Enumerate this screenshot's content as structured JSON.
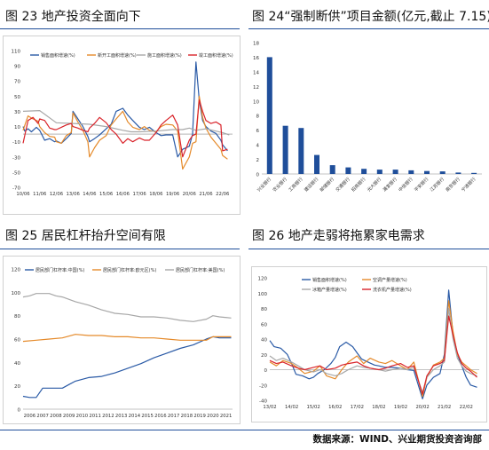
{
  "figures": {
    "fig23": {
      "title": "图 23  地产投资全面向下"
    },
    "fig24": {
      "title": "图 24“强制断供”项目金额(亿元,截止 7.15)"
    },
    "fig25": {
      "title": "图 25 居民杠杆抬升空间有限"
    },
    "fig26": {
      "title": "图 26 地产走弱将拖累家电需求"
    }
  },
  "source": "数据来源：WIND、兴业期货投资咨询部",
  "colors": {
    "blue": "#2a5aa6",
    "orange": "#e58a2a",
    "gray": "#a7a7a7",
    "red": "#d9232a",
    "bar": "#1f4e9a",
    "rule": "#1f4e9a"
  },
  "chart_data": [
    {
      "id": "fig23",
      "type": "line",
      "xticks": [
        "10/06",
        "11/06",
        "12/06",
        "13/06",
        "14/06",
        "15/06",
        "16/06",
        "17/06",
        "18/06",
        "19/06",
        "20/06",
        "21/06",
        "22/06"
      ],
      "yticks": [
        110,
        90,
        70,
        50,
        30,
        10,
        -10,
        -30,
        -50,
        -70
      ],
      "ylim": [
        -70,
        110
      ],
      "xlim": [
        0,
        12.6
      ],
      "series": [
        {
          "name": "销售面积增速(%)",
          "color": "#2a5aa6",
          "x": [
            0,
            0.1,
            0.3,
            0.5,
            0.8,
            1.0,
            1.3,
            1.6,
            1.9,
            2.0,
            2.3,
            2.6,
            2.9,
            3.0,
            3.3,
            3.6,
            3.9,
            4.0,
            4.3,
            4.6,
            5.0,
            5.3,
            5.6,
            6.0,
            6.3,
            6.6,
            7.0,
            7.3,
            7.6,
            8.0,
            8.3,
            8.6,
            9.0,
            9.3,
            9.6,
            10.0,
            10.2,
            10.4,
            10.6,
            10.8,
            11.0,
            11.3,
            11.6,
            11.9,
            12.0,
            12.3
          ],
          "y": [
            10,
            4,
            7,
            3,
            9,
            5,
            -8,
            -6,
            -10,
            -9,
            -12,
            -6,
            1,
            30,
            20,
            10,
            -3,
            -10,
            -6,
            -1,
            7,
            13,
            30,
            34,
            25,
            18,
            9,
            6,
            9,
            2,
            -2,
            -1,
            -1,
            -30,
            -20,
            -16,
            0,
            95,
            45,
            18,
            10,
            4,
            1,
            -8,
            -14,
            -22
          ]
        },
        {
          "name": "新开工面积增速(%)",
          "color": "#e58a2a",
          "x": [
            0,
            0.3,
            0.6,
            0.9,
            1.0,
            1.3,
            1.6,
            1.9,
            2.0,
            2.3,
            2.6,
            2.9,
            3.0,
            3.3,
            3.6,
            3.9,
            4.0,
            4.3,
            4.6,
            5.0,
            5.3,
            5.6,
            6.0,
            6.3,
            6.6,
            7.0,
            7.3,
            7.6,
            8.0,
            8.3,
            8.6,
            9.0,
            9.3,
            9.6,
            10.0,
            10.2,
            10.4,
            10.6,
            10.8,
            11.0,
            11.3,
            11.6,
            11.9,
            12.0,
            12.3
          ],
          "y": [
            5,
            24,
            20,
            17,
            10,
            2,
            -3,
            -4,
            -10,
            -12,
            -2,
            2,
            28,
            16,
            5,
            -10,
            -30,
            -18,
            -8,
            -2,
            12,
            20,
            30,
            16,
            9,
            6,
            10,
            5,
            3,
            10,
            13,
            12,
            4,
            -46,
            -30,
            -12,
            -10,
            50,
            22,
            8,
            -4,
            -12,
            -20,
            -28,
            -33
          ]
        },
        {
          "name": "施工面积增速(%)",
          "color": "#a7a7a7",
          "x": [
            0,
            1,
            2,
            3,
            4,
            5,
            6,
            6.5,
            7,
            8,
            9,
            9.6,
            10,
            10.4,
            11,
            12,
            12.4
          ],
          "y": [
            30,
            31,
            15,
            14,
            13,
            10,
            5,
            3,
            3,
            4,
            6,
            6,
            8,
            5,
            7,
            2,
            -1
          ]
        },
        {
          "name": "竣工面积增速(%)",
          "color": "#d9232a",
          "x": [
            0,
            0.3,
            0.6,
            0.9,
            1.0,
            1.3,
            1.6,
            1.9,
            2.0,
            2.3,
            2.6,
            2.9,
            3.0,
            3.3,
            3.6,
            3.9,
            4.0,
            4.3,
            4.6,
            5.0,
            5.3,
            5.6,
            6.0,
            6.3,
            6.6,
            7.0,
            7.3,
            7.6,
            8.0,
            8.3,
            8.6,
            9.0,
            9.3,
            9.6,
            10.0,
            10.2,
            10.4,
            10.6,
            10.8,
            11.0,
            11.3,
            11.6,
            11.9,
            12.0,
            12.3
          ],
          "y": [
            -12,
            18,
            22,
            14,
            20,
            18,
            8,
            6,
            6,
            9,
            12,
            14,
            10,
            8,
            5,
            3,
            8,
            14,
            22,
            15,
            6,
            0,
            -12,
            -6,
            -10,
            -5,
            -8,
            -8,
            2,
            12,
            18,
            25,
            12,
            -30,
            -8,
            -2,
            0,
            45,
            30,
            18,
            14,
            16,
            12,
            -22,
            -20
          ]
        }
      ]
    },
    {
      "id": "fig24",
      "type": "bar",
      "categories": [
        "兴业银行",
        "农业银行",
        "工商银行",
        "建设银行",
        "邮储银行",
        "交通银行",
        "招商银行",
        "光大银行",
        "浦发银行",
        "中信银行",
        "平安银行",
        "江苏银行",
        "南京银行",
        "宁波银行"
      ],
      "values": [
        16.0,
        6.6,
        6.3,
        2.6,
        1.2,
        0.9,
        0.7,
        0.6,
        0.6,
        0.5,
        0.4,
        0.35,
        0.2,
        0.15
      ],
      "yticks": [
        0,
        2,
        4,
        6,
        8,
        10,
        12,
        14,
        16,
        18
      ],
      "ylim": [
        0,
        18
      ]
    },
    {
      "id": "fig25",
      "type": "line",
      "xticks": [
        "2006",
        "2007",
        "2008",
        "2009",
        "2010",
        "2011",
        "2012",
        "2013",
        "2014",
        "2015",
        "2016",
        "2017",
        "2018",
        "2019",
        "2020",
        "2021"
      ],
      "yticks": [
        0,
        20,
        40,
        60,
        80,
        100,
        120
      ],
      "ylim": [
        0,
        120
      ],
      "xlim": [
        2006,
        2022
      ],
      "series": [
        {
          "name": "居民部门杠杆率:中国(%)",
          "color": "#2a5aa6",
          "x": [
            2006,
            2006.5,
            2007,
            2007.5,
            2008,
            2008.5,
            2009,
            2009.5,
            2010,
            2011,
            2012,
            2013,
            2014,
            2015,
            2016,
            2017,
            2018,
            2019,
            2020,
            2020.5,
            2021,
            2021.5,
            2021.9
          ],
          "y": [
            11,
            10,
            10,
            18,
            18,
            18,
            18,
            21,
            24,
            27,
            28,
            31,
            35,
            39,
            44,
            48,
            52,
            55,
            60,
            62,
            61,
            61,
            61
          ]
        },
        {
          "name": "居民部门杠杆率:欧元区(%)",
          "color": "#e58a2a",
          "x": [
            2006,
            2007,
            2008,
            2009,
            2010,
            2011,
            2012,
            2013,
            2014,
            2015,
            2016,
            2017,
            2018,
            2019,
            2020,
            2020.5,
            2021,
            2021.9
          ],
          "y": [
            58,
            59,
            60,
            61,
            64,
            63,
            63,
            62,
            62,
            61,
            61,
            60,
            59,
            59,
            59,
            62,
            62,
            62
          ]
        },
        {
          "name": "居民部门杠杆率:美国(%)",
          "color": "#a7a7a7",
          "x": [
            2006,
            2006.5,
            2007,
            2007.5,
            2008,
            2008.5,
            2009,
            2010,
            2011,
            2012,
            2013,
            2014,
            2015,
            2016,
            2017,
            2018,
            2019,
            2020,
            2020.5,
            2021,
            2021.9
          ],
          "y": [
            96,
            97,
            99,
            99,
            99,
            97,
            96,
            92,
            89,
            85,
            82,
            81,
            79,
            79,
            78,
            76,
            75,
            77,
            80,
            79,
            78
          ]
        }
      ]
    },
    {
      "id": "fig26",
      "type": "line",
      "xticks": [
        "13/02",
        "14/02",
        "15/02",
        "16/02",
        "17/02",
        "18/02",
        "19/02",
        "20/02",
        "21/02",
        "22/02"
      ],
      "yticks": [
        120,
        100,
        80,
        60,
        40,
        20,
        0,
        -20,
        -40
      ],
      "ylim": [
        -40,
        120
      ],
      "xlim": [
        0,
        9.6
      ],
      "series": [
        {
          "name": "销售面积增速(%)",
          "color": "#2a5aa6",
          "x": [
            0,
            0.2,
            0.5,
            0.8,
            1.0,
            1.2,
            1.5,
            1.8,
            2.0,
            2.2,
            2.5,
            2.8,
            3.0,
            3.2,
            3.5,
            3.8,
            4.0,
            4.2,
            4.5,
            4.8,
            5.0,
            5.3,
            5.6,
            6.0,
            6.3,
            6.6,
            7.0,
            7.2,
            7.5,
            7.8,
            8.0,
            8.2,
            8.4,
            8.6,
            8.8,
            9.0,
            9.2,
            9.5
          ],
          "y": [
            38,
            30,
            28,
            20,
            8,
            -6,
            -8,
            -12,
            -10,
            -5,
            0,
            8,
            16,
            30,
            36,
            30,
            22,
            14,
            10,
            6,
            5,
            3,
            3,
            2,
            0,
            -1,
            -38,
            -20,
            -10,
            -5,
            20,
            104,
            45,
            20,
            5,
            -10,
            -20,
            -23
          ]
        },
        {
          "name": "空调产量增速(%)",
          "color": "#e58a2a",
          "x": [
            0,
            0.3,
            0.6,
            1.0,
            1.3,
            1.6,
            2.0,
            2.3,
            2.6,
            3.0,
            3.3,
            3.6,
            4.0,
            4.3,
            4.6,
            5.0,
            5.3,
            5.6,
            6.0,
            6.3,
            6.6,
            7.0,
            7.2,
            7.5,
            7.8,
            8.0,
            8.2,
            8.4,
            8.6,
            8.8,
            9.0,
            9.2,
            9.5
          ],
          "y": [
            10,
            5,
            12,
            8,
            2,
            -5,
            -2,
            5,
            -8,
            -12,
            0,
            10,
            18,
            8,
            15,
            10,
            8,
            12,
            5,
            0,
            10,
            -35,
            -10,
            6,
            10,
            15,
            90,
            50,
            20,
            10,
            5,
            0,
            -5
          ]
        },
        {
          "name": "冰箱产量增速(%)",
          "color": "#a7a7a7",
          "x": [
            0,
            0.3,
            0.6,
            1.0,
            1.3,
            1.6,
            2.0,
            2.3,
            2.6,
            3.0,
            3.3,
            3.6,
            4.0,
            4.3,
            4.6,
            5.0,
            5.3,
            5.6,
            6.0,
            6.3,
            6.6,
            7.0,
            7.2,
            7.5,
            7.8,
            8.0,
            8.2,
            8.4,
            8.6,
            8.8,
            9.0,
            9.2,
            9.5
          ],
          "y": [
            18,
            12,
            15,
            10,
            5,
            0,
            -3,
            0,
            -5,
            -8,
            -5,
            0,
            5,
            3,
            2,
            0,
            -2,
            0,
            2,
            0,
            3,
            -30,
            -10,
            0,
            5,
            10,
            80,
            40,
            15,
            5,
            -2,
            -5,
            -8
          ]
        },
        {
          "name": "洗衣机产量增速(%)",
          "color": "#d9232a",
          "x": [
            0,
            0.3,
            0.6,
            1.0,
            1.3,
            1.6,
            2.0,
            2.3,
            2.6,
            3.0,
            3.3,
            3.6,
            4.0,
            4.3,
            4.6,
            5.0,
            5.3,
            5.6,
            6.0,
            6.3,
            6.6,
            7.0,
            7.2,
            7.5,
            7.8,
            8.0,
            8.2,
            8.4,
            8.6,
            8.8,
            9.0,
            9.2,
            9.5
          ],
          "y": [
            12,
            8,
            10,
            5,
            2,
            0,
            3,
            5,
            0,
            2,
            6,
            8,
            10,
            5,
            2,
            0,
            2,
            5,
            8,
            3,
            5,
            -32,
            -8,
            5,
            8,
            12,
            70,
            45,
            22,
            8,
            2,
            -2,
            -10
          ]
        }
      ]
    }
  ]
}
